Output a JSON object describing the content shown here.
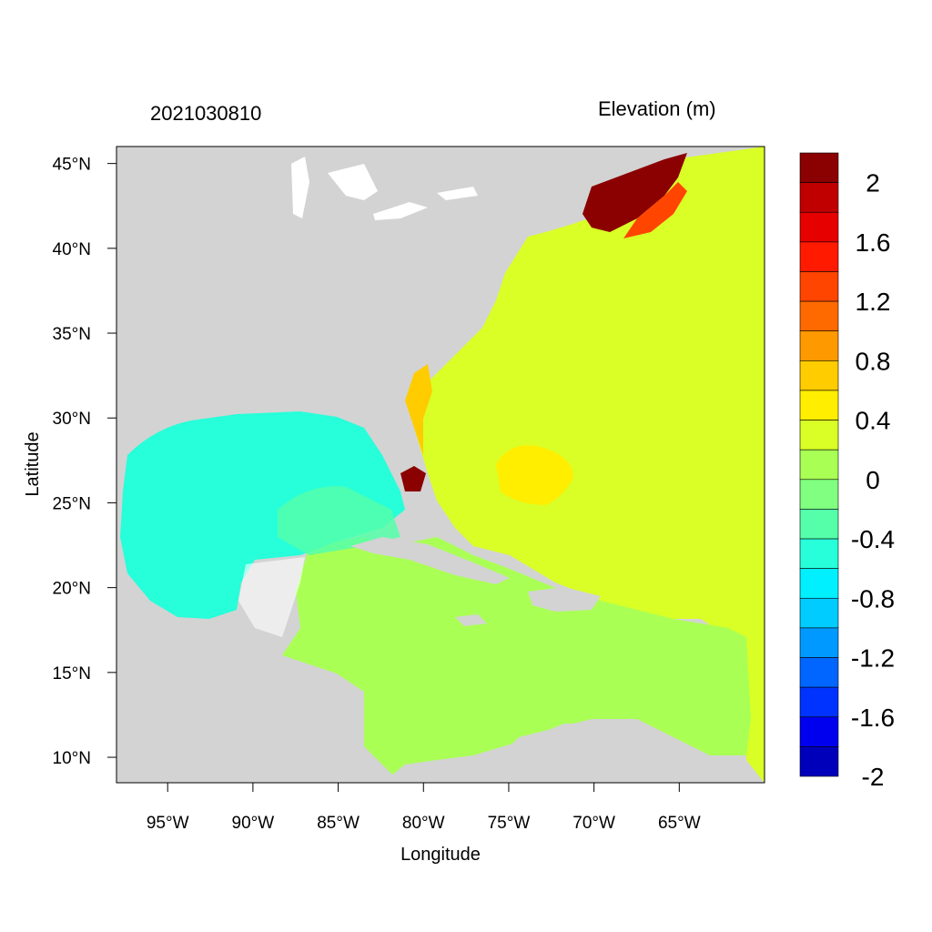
{
  "header": {
    "timestamp": "2021030810",
    "field_title": "Elevation (m)"
  },
  "axes": {
    "xlabel": "Longitude",
    "ylabel": "Latitude",
    "lon_ticks": [
      {
        "value": -95,
        "label": "95°W"
      },
      {
        "value": -90,
        "label": "90°W"
      },
      {
        "value": -85,
        "label": "85°W"
      },
      {
        "value": -80,
        "label": "80°W"
      },
      {
        "value": -75,
        "label": "75°W"
      },
      {
        "value": -70,
        "label": "70°W"
      },
      {
        "value": -65,
        "label": "65°W"
      }
    ],
    "lat_ticks": [
      {
        "value": 45,
        "label": "45°N"
      },
      {
        "value": 40,
        "label": "40°N"
      },
      {
        "value": 35,
        "label": "35°N"
      },
      {
        "value": 30,
        "label": "30°N"
      },
      {
        "value": 25,
        "label": "25°N"
      },
      {
        "value": 20,
        "label": "20°N"
      },
      {
        "value": 15,
        "label": "15°N"
      },
      {
        "value": 10,
        "label": "10°N"
      }
    ],
    "lon_range": [
      -98,
      -60
    ],
    "lat_range": [
      8.5,
      46
    ]
  },
  "colorbar": {
    "colors": [
      "#8b0000",
      "#c00000",
      "#e60000",
      "#ff1a00",
      "#ff4500",
      "#ff6a00",
      "#ff9900",
      "#ffcc00",
      "#ffee00",
      "#d9ff26",
      "#aaff55",
      "#80ff80",
      "#55ffaa",
      "#26ffd9",
      "#00f0ff",
      "#00ccff",
      "#0099ff",
      "#0066ff",
      "#0033ff",
      "#0000ee",
      "#0000bb"
    ],
    "labels": [
      "2",
      "1.6",
      "1.2",
      "0.8",
      "0.4",
      "0",
      "-0.4",
      "-0.8",
      "-1.2",
      "-1.6",
      "-2"
    ]
  },
  "colors": {
    "land": "#d3d3d3",
    "white_water": "#ffffff",
    "gulf": "#26ffd9",
    "atlantic": "#d9ff26",
    "caribbean": "#aaff55",
    "gulf_stream": "#ffcc00",
    "maine_high": "#8b0000"
  }
}
